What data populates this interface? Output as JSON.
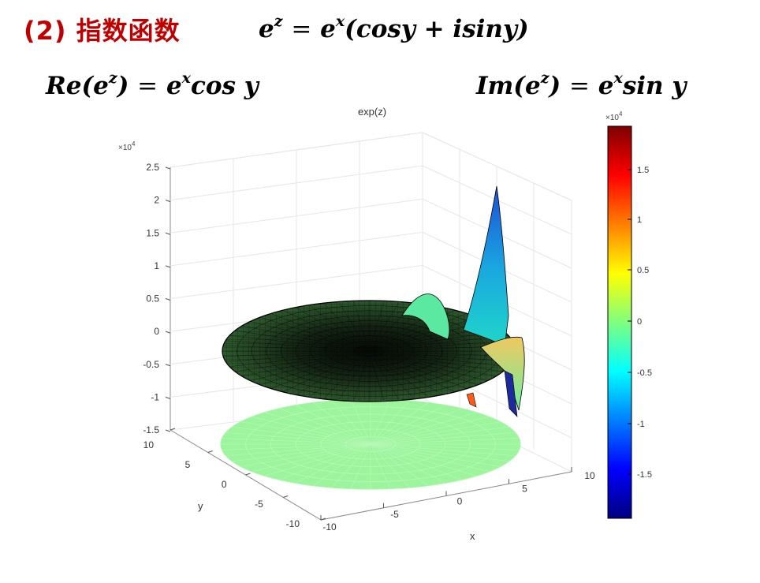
{
  "heading": {
    "label": "(2) 指数函数"
  },
  "formulas": {
    "main": {
      "lhs_base": "e",
      "lhs_exp": "z",
      "eq": "=",
      "rhs_base": "e",
      "rhs_exp": "x",
      "rhs_body": "(cosy + isiny)"
    },
    "real": {
      "prefix": "Re(",
      "base": "e",
      "exp": "z",
      "close": ")",
      "eq": "=",
      "rhs_base": "e",
      "rhs_exp": "x",
      "rhs_body": "cos y"
    },
    "imag": {
      "prefix": "Im(",
      "base": "e",
      "exp": "z",
      "close": ")",
      "eq": "=",
      "rhs_base": "e",
      "rhs_exp": "x",
      "rhs_body": "sin y"
    }
  },
  "plot": {
    "title": "exp(z)",
    "z_multiplier": "×10",
    "z_multiplier_exp": "4",
    "z_ticks": [
      "2.5",
      "2",
      "1.5",
      "1",
      "0.5",
      "0",
      "-0.5",
      "-1",
      "-1.5"
    ],
    "x_ticks": [
      "-10",
      "-5",
      "0",
      "5",
      "10"
    ],
    "y_ticks": [
      "10",
      "5",
      "0",
      "-5",
      "-10"
    ],
    "x_label": "x",
    "y_label": "y",
    "colorbar": {
      "multiplier": "×10",
      "multiplier_exp": "4",
      "ticks": [
        "1.5",
        "1",
        "0.5",
        "0",
        "-0.5",
        "-1",
        "-1.5"
      ]
    },
    "colors": {
      "surface_dark": "#0a1a0a",
      "floor": "#9cf59c",
      "edge": "#000000"
    }
  }
}
